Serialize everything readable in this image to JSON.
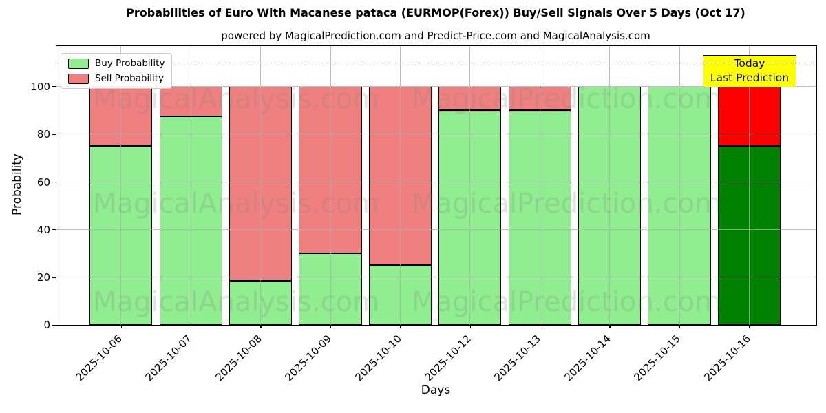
{
  "chart_data": {
    "type": "bar",
    "stacked": true,
    "title": "Probabilities of Euro With Macanese pataca (EURMOP(Forex)) Buy/Sell Signals Over 5 Days (Oct 17)",
    "subtitle": "powered by MagicalPrediction.com and Predict-Price.com and MagicalAnalysis.com",
    "xlabel": "Days",
    "ylabel": "Probability",
    "ylim": [
      0,
      117
    ],
    "yticks": [
      0,
      20,
      40,
      60,
      80,
      100
    ],
    "grid": true,
    "legend_position": "upper left",
    "dashed_hline_y": 110,
    "categories": [
      "2025-10-06",
      "2025-10-07",
      "2025-10-08",
      "2025-10-09",
      "2025-10-10",
      "2025-10-12",
      "2025-10-13",
      "2025-10-14",
      "2025-10-15",
      "2025-10-16"
    ],
    "series": [
      {
        "name": "Buy Probability",
        "color": "#90ee90",
        "values": [
          75,
          87.5,
          18.5,
          30,
          25,
          90,
          90,
          100,
          100,
          75
        ]
      },
      {
        "name": "Sell Probability",
        "color": "#f08080",
        "values": [
          25,
          12.5,
          81.5,
          70,
          75,
          10,
          10,
          0,
          0,
          25
        ]
      }
    ],
    "today_bar": {
      "category": "2025-10-16",
      "buy_color": "#008000",
      "sell_color": "#ff0000"
    }
  },
  "annotation": {
    "line1": "Today",
    "line2": "Last Prediction",
    "bg_color": "#ffff00"
  },
  "watermark": {
    "left_text": "MagicalAnalysis.com",
    "right_text": "MagicalPrediction.com"
  }
}
